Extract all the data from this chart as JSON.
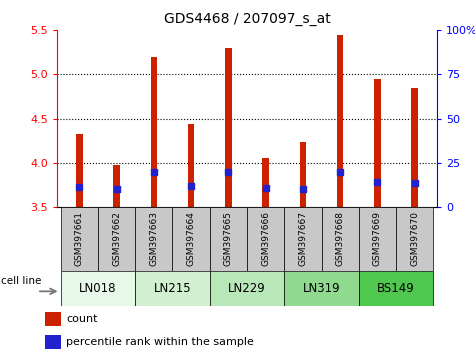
{
  "title": "GDS4468 / 207097_s_at",
  "samples": [
    "GSM397661",
    "GSM397662",
    "GSM397663",
    "GSM397664",
    "GSM397665",
    "GSM397666",
    "GSM397667",
    "GSM397668",
    "GSM397669",
    "GSM397670"
  ],
  "count_values": [
    4.33,
    3.97,
    5.2,
    4.44,
    5.3,
    4.05,
    4.23,
    5.45,
    4.95,
    4.85
  ],
  "percentile_values": [
    11.5,
    10.0,
    20.0,
    12.0,
    20.0,
    11.0,
    10.0,
    20.0,
    14.0,
    13.5
  ],
  "cell_lines": [
    {
      "name": "LN018",
      "start": 0,
      "end": 2,
      "color": "#e8f8e8"
    },
    {
      "name": "LN215",
      "start": 2,
      "end": 4,
      "color": "#d0f0d0"
    },
    {
      "name": "LN229",
      "start": 4,
      "end": 6,
      "color": "#b8e8b8"
    },
    {
      "name": "LN319",
      "start": 6,
      "end": 8,
      "color": "#90da90"
    },
    {
      "name": "BS149",
      "start": 8,
      "end": 10,
      "color": "#50c850"
    }
  ],
  "ylim_left": [
    3.5,
    5.5
  ],
  "ylim_right": [
    0,
    100
  ],
  "yticks_left": [
    3.5,
    4.0,
    4.5,
    5.0,
    5.5
  ],
  "yticks_right": [
    0,
    25,
    50,
    75,
    100
  ],
  "bar_color": "#cc2200",
  "percentile_color": "#2222cc",
  "bar_width": 0.18,
  "background_color": "#ffffff",
  "plot_bg_color": "#ffffff",
  "legend_count_label": "count",
  "legend_pct_label": "percentile rank within the sample",
  "cell_line_label": "cell line",
  "sample_bg_color": "#c8c8c8"
}
